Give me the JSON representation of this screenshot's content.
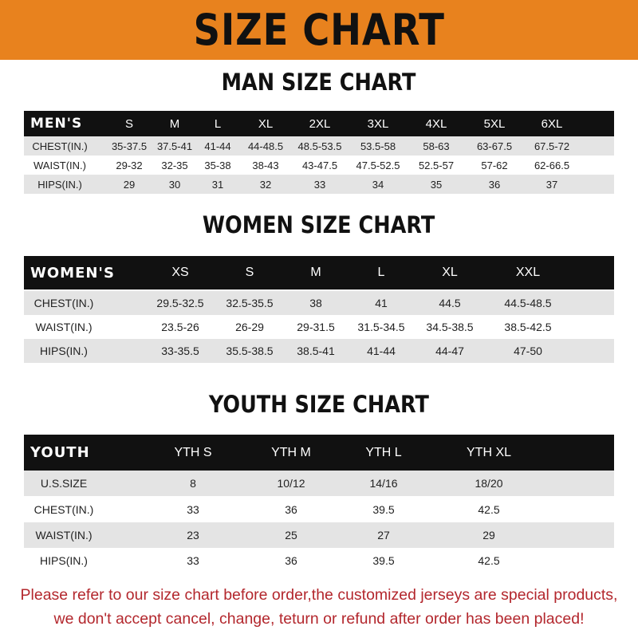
{
  "banner_title": "SIZE CHART",
  "colors": {
    "banner": "#e8821e",
    "header_row": "#111111",
    "stripe": "#e4e4e4",
    "notice": "#b3272d"
  },
  "men": {
    "title": "MAN SIZE CHART",
    "header": [
      "MEN'S",
      "S",
      "M",
      "L",
      "XL",
      "2XL",
      "3XL",
      "4XL",
      "5XL",
      "6XL"
    ],
    "rows": [
      [
        "CHEST(IN.)",
        "35-37.5",
        "37.5-41",
        "41-44",
        "44-48.5",
        "48.5-53.5",
        "53.5-58",
        "58-63",
        "63-67.5",
        "67.5-72"
      ],
      [
        "WAIST(IN.)",
        "29-32",
        "32-35",
        "35-38",
        "38-43",
        "43-47.5",
        "47.5-52.5",
        "52.5-57",
        "57-62",
        "62-66.5"
      ],
      [
        "HIPS(IN.)",
        "29",
        "30",
        "31",
        "32",
        "33",
        "34",
        "35",
        "36",
        "37"
      ]
    ]
  },
  "women": {
    "title": "WOMEN SIZE CHART",
    "header": [
      "WOMEN'S",
      "XS",
      "S",
      "M",
      "L",
      "XL",
      "XXL"
    ],
    "rows": [
      [
        "CHEST(IN.)",
        "29.5-32.5",
        "32.5-35.5",
        "38",
        "41",
        "44.5",
        "44.5-48.5"
      ],
      [
        "WAIST(IN.)",
        "23.5-26",
        "26-29",
        "29-31.5",
        "31.5-34.5",
        "34.5-38.5",
        "38.5-42.5"
      ],
      [
        "HIPS(IN.)",
        "33-35.5",
        "35.5-38.5",
        "38.5-41",
        "41-44",
        "44-47",
        "47-50"
      ]
    ]
  },
  "youth": {
    "title": "YOUTH SIZE CHART",
    "header": [
      "YOUTH",
      "YTH S",
      "YTH M",
      "YTH L",
      "YTH XL"
    ],
    "rows": [
      [
        "U.S.SIZE",
        "8",
        "10/12",
        "14/16",
        "18/20"
      ],
      [
        "CHEST(IN.)",
        "33",
        "36",
        "39.5",
        "42.5"
      ],
      [
        "WAIST(IN.)",
        "23",
        "25",
        "27",
        "29"
      ],
      [
        "HIPS(IN.)",
        "33",
        "36",
        "39.5",
        "42.5"
      ]
    ]
  },
  "notice": [
    "Please refer to our size chart before order,the customized jerseys are special products,",
    "we don't accept cancel, change, teturn or refund after order has been placed!"
  ]
}
